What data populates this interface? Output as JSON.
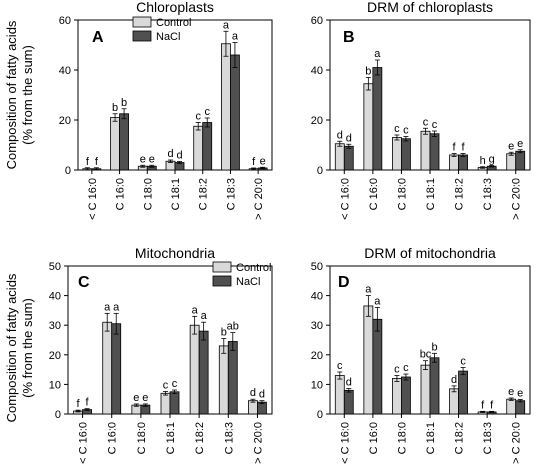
{
  "figure": {
    "ylabel_top": [
      "Composition of fatty acids",
      "(% from the sum)"
    ],
    "ylabel_bottom": [
      "Composition of fatty acids",
      "(% from the sum)"
    ]
  },
  "chart_data": [
    {
      "type": "bar",
      "panel_letter": "A",
      "title": "Chloroplasts",
      "categories": [
        "< C 16:0",
        "C 16:0",
        "C 18:0",
        "C 18:1",
        "C 18:2",
        "C 18:3",
        "> C 20:0"
      ],
      "series": [
        {
          "name": "Control",
          "color": "#d9d9d9",
          "values": [
            0.5,
            21,
            1.5,
            3.5,
            17.5,
            50.5,
            0.5
          ],
          "errors": [
            0.4,
            1.5,
            0.4,
            0.5,
            1.5,
            5,
            0.3
          ],
          "letters": [
            "f",
            "b",
            "e",
            "d",
            "c",
            "a",
            "f"
          ]
        },
        {
          "name": "NaCl",
          "color": "#505050",
          "values": [
            0.5,
            22.5,
            1.5,
            3,
            19,
            46,
            0.8
          ],
          "errors": [
            0.4,
            2,
            0.4,
            0.4,
            1.8,
            5,
            0.3
          ],
          "letters": [
            "f",
            "b",
            "e",
            "d",
            "c",
            "a",
            "e"
          ]
        }
      ],
      "ylim": [
        0,
        60
      ],
      "yticks": [
        0,
        20,
        40,
        60
      ],
      "show_legend": true,
      "legend_placement": "top-center"
    },
    {
      "type": "bar",
      "panel_letter": "B",
      "title": "DRM of chloroplasts",
      "categories": [
        "< C 16:0",
        "C 16:0",
        "C 18:0",
        "C 18:1",
        "C 18:2",
        "C 18:3",
        "> C 20:0"
      ],
      "series": [
        {
          "name": "Control",
          "color": "#d9d9d9",
          "values": [
            10.5,
            34.5,
            13,
            15.5,
            6,
            1,
            6.5
          ],
          "errors": [
            1,
            2.5,
            1,
            1.2,
            0.6,
            0.3,
            0.6
          ],
          "letters": [
            "d",
            "b",
            "c",
            "c",
            "f",
            "h",
            "e"
          ]
        },
        {
          "name": "NaCl",
          "color": "#505050",
          "values": [
            9.5,
            41,
            12.5,
            14.5,
            6,
            1.5,
            7.5
          ],
          "errors": [
            0.8,
            3,
            0.9,
            1.1,
            0.6,
            0.3,
            0.6
          ],
          "letters": [
            "d",
            "a",
            "c",
            "c",
            "f",
            "g",
            "e"
          ]
        }
      ],
      "ylim": [
        0,
        60
      ],
      "yticks": [
        0,
        20,
        40,
        60
      ],
      "show_legend": false
    },
    {
      "type": "bar",
      "panel_letter": "C",
      "title": "Mitochondria",
      "categories": [
        "< C 16:0",
        "C 16:0",
        "C 18:0",
        "C 18:1",
        "C 18:2",
        "C 18:3",
        "> C 20:0"
      ],
      "series": [
        {
          "name": "Control",
          "color": "#d9d9d9",
          "values": [
            1,
            31,
            3,
            7,
            30,
            23,
            4.5
          ],
          "errors": [
            0.3,
            3,
            0.4,
            0.6,
            3,
            2.5,
            0.5
          ],
          "letters": [
            "f",
            "a",
            "e",
            "c",
            "a",
            "b",
            "d"
          ]
        },
        {
          "name": "NaCl",
          "color": "#505050",
          "values": [
            1.5,
            30.5,
            3,
            7.5,
            28,
            24.5,
            4
          ],
          "errors": [
            0.3,
            3.5,
            0.4,
            0.6,
            3,
            3,
            0.5
          ],
          "letters": [
            "f",
            "a",
            "e",
            "c",
            "a",
            "ab",
            "d"
          ]
        }
      ],
      "ylim": [
        0,
        50
      ],
      "yticks": [
        0,
        10,
        20,
        30,
        40,
        50
      ],
      "show_legend": true,
      "legend_placement": "top-right"
    },
    {
      "type": "bar",
      "panel_letter": "D",
      "title": "DRM of mitochondria",
      "categories": [
        "< C 16:0",
        "C 16:0",
        "C 18:0",
        "C 18:1",
        "C 18:2",
        "C 18:3",
        "> C 20:0"
      ],
      "series": [
        {
          "name": "Control",
          "color": "#d9d9d9",
          "values": [
            13,
            36.5,
            12,
            16.5,
            8.5,
            0.7,
            5
          ],
          "errors": [
            1.2,
            3.5,
            1,
            1.5,
            1,
            0.2,
            0.4
          ],
          "letters": [
            "c",
            "a",
            "c",
            "bc",
            "d",
            "f",
            "e"
          ]
        },
        {
          "name": "NaCl",
          "color": "#505050",
          "values": [
            8,
            32,
            12.5,
            19,
            14.5,
            0.7,
            4.5
          ],
          "errors": [
            0.6,
            4,
            1,
            1.5,
            1.2,
            0.2,
            0.4
          ],
          "letters": [
            "d",
            "a",
            "c",
            "b",
            "c",
            "f",
            "e"
          ]
        }
      ],
      "ylim": [
        0,
        50
      ],
      "yticks": [
        0,
        10,
        20,
        30,
        40,
        50
      ],
      "show_legend": false
    }
  ]
}
